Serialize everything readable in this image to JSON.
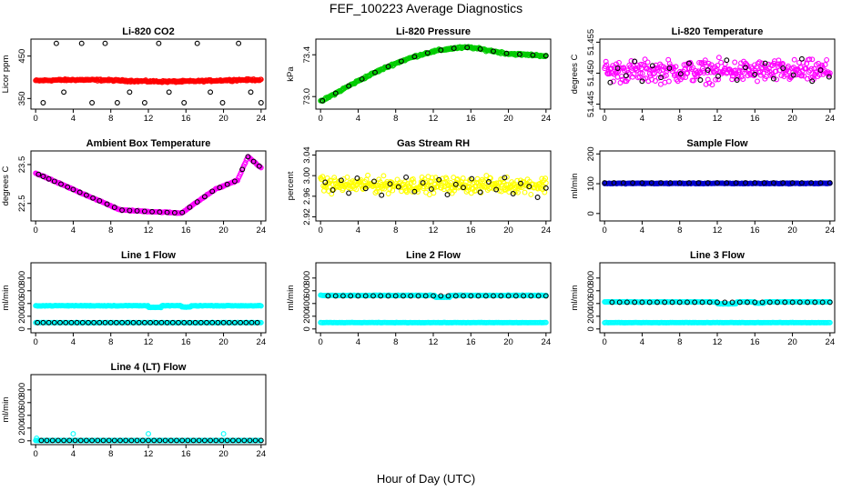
{
  "figure": {
    "title": "FEF_100223  Average Diagnostics",
    "xlabel": "Hour of Day (UTC)"
  },
  "chart_data": [
    {
      "id": "co2",
      "type": "scatter",
      "title": "Li-820 CO2",
      "ylabel": "Licor ppm",
      "xlim": [
        -0.5,
        24.5
      ],
      "ylim": [
        325,
        490
      ],
      "xticks": [
        0,
        4,
        8,
        12,
        16,
        20,
        24
      ],
      "yticks": [
        350,
        450
      ],
      "yticklabels": [
        "350",
        "450"
      ],
      "series": [
        {
          "name": "scatter",
          "color": "#ff0000",
          "kind": "dense",
          "n": 300,
          "base": 392,
          "amp": 2,
          "noise": 3
        },
        {
          "name": "hourly",
          "color": "#000000",
          "kind": "circles",
          "x": [
            0.8,
            2.2,
            3.0,
            4.9,
            6.0,
            7.4,
            8.7,
            10.0,
            11.6,
            13.1,
            14.2,
            15.8,
            17.2,
            18.6,
            19.9,
            21.6,
            22.9,
            24.0
          ],
          "y": [
            340,
            480,
            365,
            480,
            340,
            480,
            340,
            365,
            340,
            480,
            365,
            340,
            480,
            365,
            340,
            480,
            365,
            340
          ]
        }
      ]
    },
    {
      "id": "pressure",
      "type": "scatter",
      "title": "Li-820 Pressure",
      "ylabel": "kPa",
      "xlim": [
        -0.5,
        24.5
      ],
      "ylim": [
        72.88,
        73.55
      ],
      "xticks": [
        0,
        4,
        8,
        12,
        16,
        20,
        24
      ],
      "yticks": [
        73.0,
        73.4
      ],
      "yticklabels": [
        "73.0",
        "73.4"
      ],
      "series": [
        {
          "name": "scatter",
          "color": "#00cc00",
          "kind": "dense",
          "n": 260,
          "curve": "pressure",
          "noise": 0.015
        },
        {
          "name": "hourly",
          "color": "#000000",
          "kind": "circles",
          "curve": "pressure",
          "x": [
            0.2,
            1.6,
            3.0,
            4.4,
            5.8,
            7.2,
            8.6,
            10.0,
            11.4,
            12.8,
            14.2,
            15.6,
            17.0,
            18.4,
            19.8,
            21.2,
            22.6,
            24.0
          ]
        }
      ]
    },
    {
      "id": "li820temp",
      "type": "scatter",
      "title": "Li-820 Temperature",
      "ylabel": "degrees C",
      "xlim": [
        -0.5,
        24.5
      ],
      "ylim": [
        51.4442,
        51.4555
      ],
      "xticks": [
        0,
        4,
        8,
        12,
        16,
        20,
        24
      ],
      "yticks": [
        51.445,
        51.45,
        51.455
      ],
      "yticklabels": [
        "51.445",
        "51.450",
        "51.455"
      ],
      "series": [
        {
          "name": "scatter",
          "color": "#ff00ff",
          "kind": "dense",
          "n": 330,
          "base": 51.4503,
          "amp": 0,
          "noise": 0.0026
        },
        {
          "name": "hourly",
          "color": "#000000",
          "kind": "circles",
          "x": [
            0.6,
            1.4,
            2.3,
            3.2,
            4.0,
            5.1,
            6.0,
            6.9,
            8.1,
            9.0,
            10.2,
            11.0,
            12.1,
            13.0,
            14.1,
            15.0,
            16.0,
            17.1,
            18.0,
            19.0,
            20.1,
            21.0,
            22.1,
            23.0,
            23.9
          ],
          "y": [
            51.4485,
            51.4508,
            51.4496,
            51.4519,
            51.4487,
            51.4512,
            51.4493,
            51.4508,
            51.4499,
            51.4516,
            51.4489,
            51.4505,
            51.4495,
            51.4521,
            51.4489,
            51.4509,
            51.4498,
            51.4516,
            51.4491,
            51.4508,
            51.4497,
            51.4523,
            51.4487,
            51.4505,
            51.4494
          ]
        }
      ]
    },
    {
      "id": "boxtemp",
      "type": "scatter",
      "title": "Ambient Box Temperature",
      "ylabel": "degrees C",
      "xlim": [
        -0.5,
        24.5
      ],
      "ylim": [
        22.05,
        23.85
      ],
      "xticks": [
        0,
        4,
        8,
        12,
        16,
        20,
        24
      ],
      "yticks": [
        22.5,
        23.5
      ],
      "yticklabels": [
        "22.5",
        "23.5"
      ],
      "series": [
        {
          "name": "scatter",
          "color": "#ff00ff",
          "kind": "dense",
          "n": 260,
          "curve": "boxtemp",
          "noise": 0.02
        },
        {
          "name": "hourly",
          "color": "#000000",
          "kind": "circles",
          "curve": "boxtemp",
          "x": [
            0.3,
            0.8,
            1.4,
            2.0,
            2.7,
            3.4,
            4.0,
            4.7,
            5.4,
            6.1,
            6.8,
            7.6,
            8.4,
            9.2,
            10.0,
            10.8,
            11.6,
            12.4,
            13.2,
            14.0,
            14.8,
            15.6,
            16.4,
            17.2,
            18.0,
            18.8,
            19.6,
            20.4,
            21.2,
            22.0,
            22.6,
            23.2,
            23.8
          ]
        }
      ]
    },
    {
      "id": "rh",
      "type": "scatter",
      "title": "Gas Stream RH",
      "ylabel": "percent",
      "xlim": [
        -0.5,
        24.5
      ],
      "ylim": [
        2.912,
        3.048
      ],
      "xticks": [
        0,
        4,
        8,
        12,
        16,
        20,
        24
      ],
      "yticks": [
        2.92,
        2.96,
        3.0,
        3.04
      ],
      "yticklabels": [
        "2.92",
        "2.96",
        "3.00",
        "3.04"
      ],
      "series": [
        {
          "name": "scatter",
          "color": "#ffff00",
          "kind": "dense",
          "n": 330,
          "base": 2.982,
          "amp": 0,
          "noise": 0.022
        },
        {
          "name": "hourly",
          "color": "#000000",
          "kind": "circles",
          "x": [
            0.5,
            1.3,
            2.2,
            3.0,
            3.9,
            4.8,
            5.7,
            6.5,
            7.4,
            8.3,
            9.1,
            10.0,
            10.9,
            11.8,
            12.6,
            13.5,
            14.4,
            15.2,
            16.1,
            17.0,
            17.9,
            18.7,
            19.6,
            20.5,
            21.3,
            22.2,
            23.1,
            24.0
          ],
          "y": [
            2.987,
            2.972,
            2.991,
            2.966,
            2.995,
            2.975,
            2.989,
            2.962,
            2.984,
            2.978,
            2.997,
            2.969,
            2.986,
            2.974,
            2.992,
            2.963,
            2.983,
            2.977,
            2.994,
            2.968,
            2.988,
            2.973,
            2.996,
            2.965,
            2.985,
            2.979,
            2.958,
            2.976
          ]
        }
      ]
    },
    {
      "id": "sampleflow",
      "type": "scatter",
      "title": "Sample Flow",
      "ylabel": "ml/min",
      "xlim": [
        -0.5,
        24.5
      ],
      "ylim": [
        -25,
        210
      ],
      "xticks": [
        0,
        4,
        8,
        12,
        16,
        20,
        24
      ],
      "yticks": [
        0,
        100,
        200
      ],
      "yticklabels": [
        "0",
        "100",
        "200"
      ],
      "series": [
        {
          "name": "scatter",
          "color": "#0000cc",
          "kind": "dense",
          "n": 280,
          "base": 101,
          "amp": 0,
          "noise": 2
        },
        {
          "name": "hourly",
          "color": "#000000",
          "kind": "circles",
          "const": 103,
          "x": [
            0.0,
            1.0,
            2.0,
            3.0,
            4.0,
            5.0,
            6.0,
            7.0,
            8.0,
            9.0,
            10.0,
            11.0,
            12.0,
            13.0,
            14.0,
            15.0,
            16.0,
            17.0,
            18.0,
            19.0,
            20.0,
            21.0,
            22.0,
            23.0,
            24.0
          ]
        }
      ]
    },
    {
      "id": "line1",
      "type": "scatter",
      "title": "Line 1 Flow",
      "ylabel": "ml/min",
      "xlim": [
        -0.5,
        24.5
      ],
      "ylim": [
        -60,
        1040
      ],
      "xticks": [
        0,
        4,
        8,
        12,
        16,
        20,
        24
      ],
      "yticks": [
        0,
        200,
        400,
        600,
        800
      ],
      "yticklabels": [
        "0",
        "200",
        "400",
        "600",
        "800"
      ],
      "series": [
        {
          "name": "upper",
          "color": "#00ffff",
          "kind": "dense",
          "n": 260,
          "base": 365,
          "amp": 0,
          "noise": 6,
          "dips": [
            [
              12.0,
              13.4,
              340
            ],
            [
              15.5,
              16.5,
              345
            ]
          ]
        },
        {
          "name": "lower",
          "color": "#00ffff",
          "kind": "dense",
          "n": 200,
          "base": 100,
          "amp": 0,
          "noise": 3
        },
        {
          "name": "hourly",
          "color": "#000000",
          "kind": "circles",
          "const": 100,
          "x": [
            0.2,
            0.8,
            1.4,
            2.0,
            2.6,
            3.2,
            3.8,
            4.4,
            5.0,
            5.6,
            6.2,
            6.8,
            7.4,
            8.0,
            8.6,
            9.2,
            9.8,
            10.4,
            11.0,
            11.6,
            12.2,
            12.8,
            13.4,
            14.0,
            14.6,
            15.2,
            15.8,
            16.4,
            17.0,
            17.6,
            18.2,
            18.8,
            19.4,
            20.0,
            20.6,
            21.2,
            21.8,
            22.4,
            23.0,
            23.6
          ]
        }
      ]
    },
    {
      "id": "line2",
      "type": "scatter",
      "title": "Line 2 Flow",
      "ylabel": "ml/min",
      "xlim": [
        -0.5,
        24.5
      ],
      "ylim": [
        -60,
        1040
      ],
      "xticks": [
        0,
        4,
        8,
        12,
        16,
        20,
        24
      ],
      "yticks": [
        0,
        200,
        400,
        600,
        800
      ],
      "yticklabels": [
        "0",
        "200",
        "400",
        "600",
        "800"
      ],
      "series": [
        {
          "name": "upper",
          "color": "#00ffff",
          "kind": "dense",
          "n": 260,
          "base": 528,
          "amp": 0,
          "noise": 6,
          "dips": [
            [
              12.2,
              13.8,
              500
            ]
          ]
        },
        {
          "name": "lower",
          "color": "#00ffff",
          "kind": "dense",
          "n": 200,
          "base": 100,
          "amp": 0,
          "noise": 3
        },
        {
          "name": "hourly",
          "color": "#000000",
          "kind": "circles",
          "const": 520,
          "x": [
            0.8,
            1.6,
            2.4,
            3.2,
            4.0,
            4.8,
            5.6,
            6.4,
            7.2,
            8.0,
            8.8,
            9.6,
            10.4,
            11.2,
            12.0,
            12.8,
            13.6,
            14.4,
            15.2,
            16.0,
            16.8,
            17.6,
            18.4,
            19.2,
            20.0,
            20.8,
            21.6,
            22.4,
            23.2,
            24.0
          ]
        }
      ]
    },
    {
      "id": "line3",
      "type": "scatter",
      "title": "Line 3 Flow",
      "ylabel": "ml/min",
      "xlim": [
        -0.5,
        24.5
      ],
      "ylim": [
        -60,
        1040
      ],
      "xticks": [
        0,
        4,
        8,
        12,
        16,
        20,
        24
      ],
      "yticks": [
        0,
        200,
        400,
        600,
        800
      ],
      "yticklabels": [
        "0",
        "200",
        "400",
        "600",
        "800"
      ],
      "series": [
        {
          "name": "upper",
          "color": "#00ffff",
          "kind": "dense",
          "n": 260,
          "base": 425,
          "amp": 0,
          "noise": 6,
          "dips": [
            [
              12.0,
              14.0,
              395
            ],
            [
              16.0,
              17.0,
              405
            ]
          ]
        },
        {
          "name": "lower",
          "color": "#00ffff",
          "kind": "dense",
          "n": 200,
          "base": 100,
          "amp": 0,
          "noise": 3
        },
        {
          "name": "hourly",
          "color": "#000000",
          "kind": "circles",
          "const": 420,
          "x": [
            0.8,
            1.6,
            2.4,
            3.2,
            4.0,
            4.8,
            5.6,
            6.4,
            7.2,
            8.0,
            8.8,
            9.6,
            10.4,
            11.2,
            12.0,
            12.8,
            13.6,
            14.4,
            15.2,
            16.0,
            16.8,
            17.6,
            18.4,
            19.2,
            20.0,
            20.8,
            21.6,
            22.4,
            23.2,
            24.0
          ]
        }
      ]
    },
    {
      "id": "line4",
      "type": "scatter",
      "title": "Line 4 (LT) Flow",
      "ylabel": "ml/min",
      "xlim": [
        -0.5,
        24.5
      ],
      "ylim": [
        -60,
        1040
      ],
      "xticks": [
        0,
        4,
        8,
        12,
        16,
        20,
        24
      ],
      "yticks": [
        0,
        200,
        400,
        600,
        800
      ],
      "yticklabels": [
        "0",
        "200",
        "400",
        "600",
        "800"
      ],
      "series": [
        {
          "name": "scatter",
          "color": "#00ffff",
          "kind": "dense",
          "n": 220,
          "base": 5,
          "amp": 0,
          "noise": 2,
          "spikes": [
            [
              0.1,
              40
            ],
            [
              4.0,
              110
            ],
            [
              12.0,
              110
            ],
            [
              20.0,
              110
            ]
          ]
        },
        {
          "name": "hourly",
          "color": "#000000",
          "kind": "circles",
          "const": 5,
          "x": [
            0.6,
            1.2,
            1.8,
            2.4,
            3.0,
            3.6,
            4.2,
            4.8,
            5.4,
            6.0,
            6.6,
            7.2,
            7.8,
            8.4,
            9.0,
            9.6,
            10.2,
            10.8,
            11.4,
            12.0,
            12.6,
            13.2,
            13.8,
            14.4,
            15.0,
            15.6,
            16.2,
            16.8,
            17.4,
            18.0,
            18.6,
            19.2,
            19.8,
            20.4,
            21.0,
            21.6,
            22.2,
            22.8,
            23.4,
            24.0
          ]
        }
      ]
    }
  ]
}
